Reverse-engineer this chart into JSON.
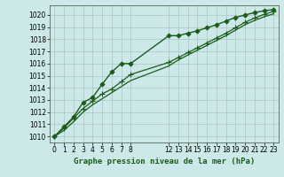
{
  "title": "Graphe pression niveau de la mer (hPa)",
  "bg_color": "#cce8e8",
  "grid_color": "#b0c8c8",
  "line_color": "#1a5c1a",
  "xlim": [
    -0.5,
    23.5
  ],
  "ylim": [
    1009.5,
    1020.8
  ],
  "yticks": [
    1010,
    1011,
    1012,
    1013,
    1014,
    1015,
    1016,
    1017,
    1018,
    1019,
    1020
  ],
  "xtick_positions": [
    0,
    1,
    2,
    3,
    4,
    5,
    6,
    7,
    8,
    12,
    13,
    14,
    15,
    16,
    17,
    18,
    19,
    20,
    21,
    22,
    23
  ],
  "xtick_labels": [
    "0",
    "1",
    "2",
    "3",
    "4",
    "5",
    "6",
    "7",
    "8",
    "12",
    "13",
    "14",
    "15",
    "16",
    "17",
    "18",
    "19",
    "20",
    "21",
    "22",
    "23"
  ],
  "series": [
    {
      "x": [
        0,
        1,
        2,
        3,
        4,
        5,
        6,
        7,
        8,
        12,
        13,
        14,
        15,
        16,
        17,
        18,
        19,
        20,
        21,
        22,
        23
      ],
      "y": [
        1010.0,
        1010.8,
        1011.6,
        1012.8,
        1013.2,
        1014.3,
        1015.3,
        1016.0,
        1016.0,
        1018.3,
        1018.3,
        1018.5,
        1018.7,
        1018.95,
        1019.2,
        1019.5,
        1019.8,
        1020.0,
        1020.2,
        1020.35,
        1020.45
      ],
      "marker": "D",
      "markersize": 2.5,
      "linewidth": 1.0,
      "zorder": 3
    },
    {
      "x": [
        0,
        1,
        2,
        3,
        4,
        5,
        6,
        7,
        8,
        12,
        13,
        14,
        15,
        16,
        17,
        18,
        19,
        20,
        21,
        22,
        23
      ],
      "y": [
        1010.0,
        1010.7,
        1011.5,
        1012.3,
        1012.9,
        1013.5,
        1013.9,
        1014.5,
        1015.1,
        1016.1,
        1016.5,
        1016.9,
        1017.3,
        1017.7,
        1018.1,
        1018.5,
        1018.95,
        1019.4,
        1019.75,
        1020.05,
        1020.3
      ],
      "marker": "+",
      "markersize": 4,
      "linewidth": 0.9,
      "zorder": 3
    },
    {
      "x": [
        0,
        1,
        2,
        3,
        4,
        5,
        6,
        7,
        8,
        12,
        13,
        14,
        15,
        16,
        17,
        18,
        19,
        20,
        21,
        22,
        23
      ],
      "y": [
        1010.0,
        1010.5,
        1011.2,
        1012.0,
        1012.6,
        1013.1,
        1013.6,
        1014.1,
        1014.6,
        1015.8,
        1016.3,
        1016.7,
        1017.1,
        1017.5,
        1017.9,
        1018.3,
        1018.75,
        1019.2,
        1019.55,
        1019.85,
        1020.1
      ],
      "marker": null,
      "markersize": 0,
      "linewidth": 0.9,
      "zorder": 2
    }
  ],
  "tick_fontsize": 5.5,
  "label_fontsize": 6.5
}
